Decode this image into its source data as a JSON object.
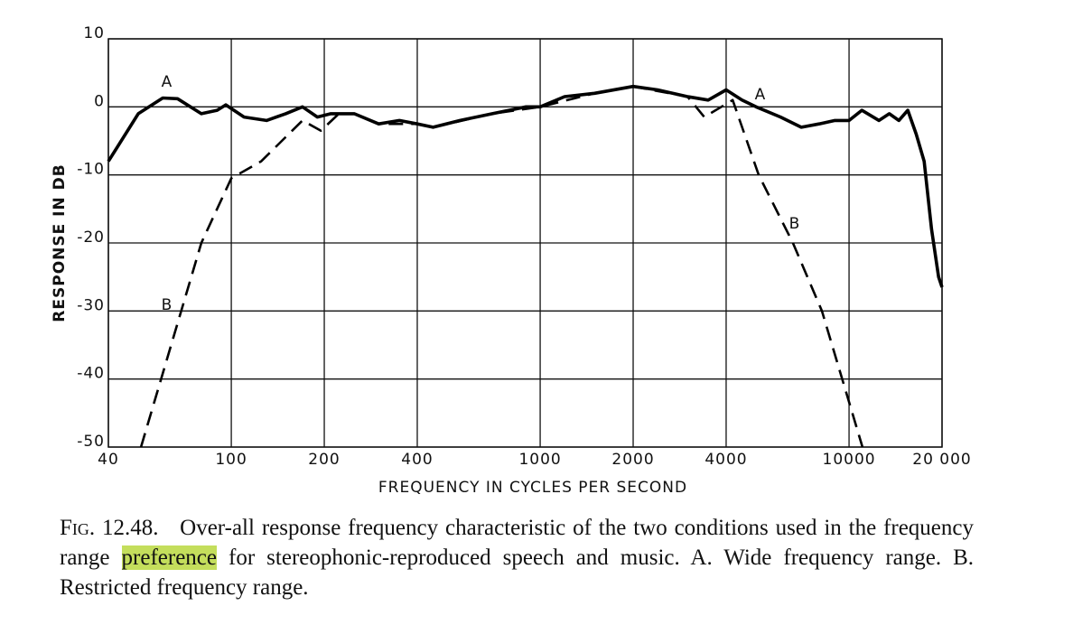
{
  "chart_data": {
    "type": "line",
    "y_label": "RESPONSE IN DB",
    "x_label": "FREQUENCY IN CYCLES PER SECOND",
    "log_x": true,
    "grid": true,
    "xlim": [
      40,
      20000
    ],
    "xticks": [
      40,
      100,
      200,
      400,
      1000,
      2000,
      4000,
      10000,
      {
        "value": 20000,
        "label": "20 000"
      }
    ],
    "ylim": [
      -50,
      10
    ],
    "yticks": [
      -50,
      -40,
      -30,
      -20,
      -10,
      0,
      10
    ],
    "series": [
      {
        "name": "A",
        "color": "#000000",
        "style": "solid",
        "x": [
          40,
          50,
          60,
          67,
          80,
          90,
          96,
          110,
          130,
          150,
          170,
          190,
          210,
          250,
          300,
          350,
          400,
          450,
          550,
          700,
          900,
          1000,
          1200,
          1500,
          2000,
          2400,
          3000,
          3500,
          4000,
          4500,
          5000,
          6000,
          7000,
          8000,
          9000,
          10000,
          11000,
          12500,
          13500,
          14500,
          15500,
          16500,
          17500,
          18500,
          19500,
          20000
        ],
        "values": [
          -8,
          -1,
          1.3,
          1.2,
          -1,
          -0.5,
          0.3,
          -1.5,
          -2,
          -1,
          0,
          -1.5,
          -1,
          -1,
          -2.5,
          -2,
          -2.5,
          -3,
          -2,
          -1,
          0,
          0,
          1.5,
          2,
          3,
          2.5,
          1.5,
          1,
          2.5,
          1,
          0,
          -1.5,
          -3,
          -2.5,
          -2,
          -2,
          -0.5,
          -2,
          -1,
          -2,
          -0.5,
          -4,
          -8,
          -18,
          -25,
          -26.5
        ]
      },
      {
        "name": "B",
        "color": "#000000",
        "style": "dashed",
        "x": [
          51,
          80,
          100,
          125,
          170,
          195,
          223,
          250,
          300,
          400,
          450,
          700,
          1000,
          1500,
          2000,
          3000,
          3400,
          4200,
          5100,
          6580,
          8170,
          11050
        ],
        "values": [
          -50,
          -20,
          -10.5,
          -8,
          -2,
          -3.5,
          -1,
          -1,
          -2.5,
          -2.5,
          -3,
          -1,
          0,
          2,
          3,
          1.5,
          -1.5,
          1,
          -10,
          -20,
          -30,
          -50
        ]
      }
    ]
  },
  "caption": {
    "label": "Fig. 12.48.",
    "before": "Over-all response frequency characteristic of the two conditions used in the frequency range",
    "highlight": "preference",
    "after": "for stereophonic-reproduced speech and music.  A. Wide frequency range.  B. Restricted frequency range."
  }
}
